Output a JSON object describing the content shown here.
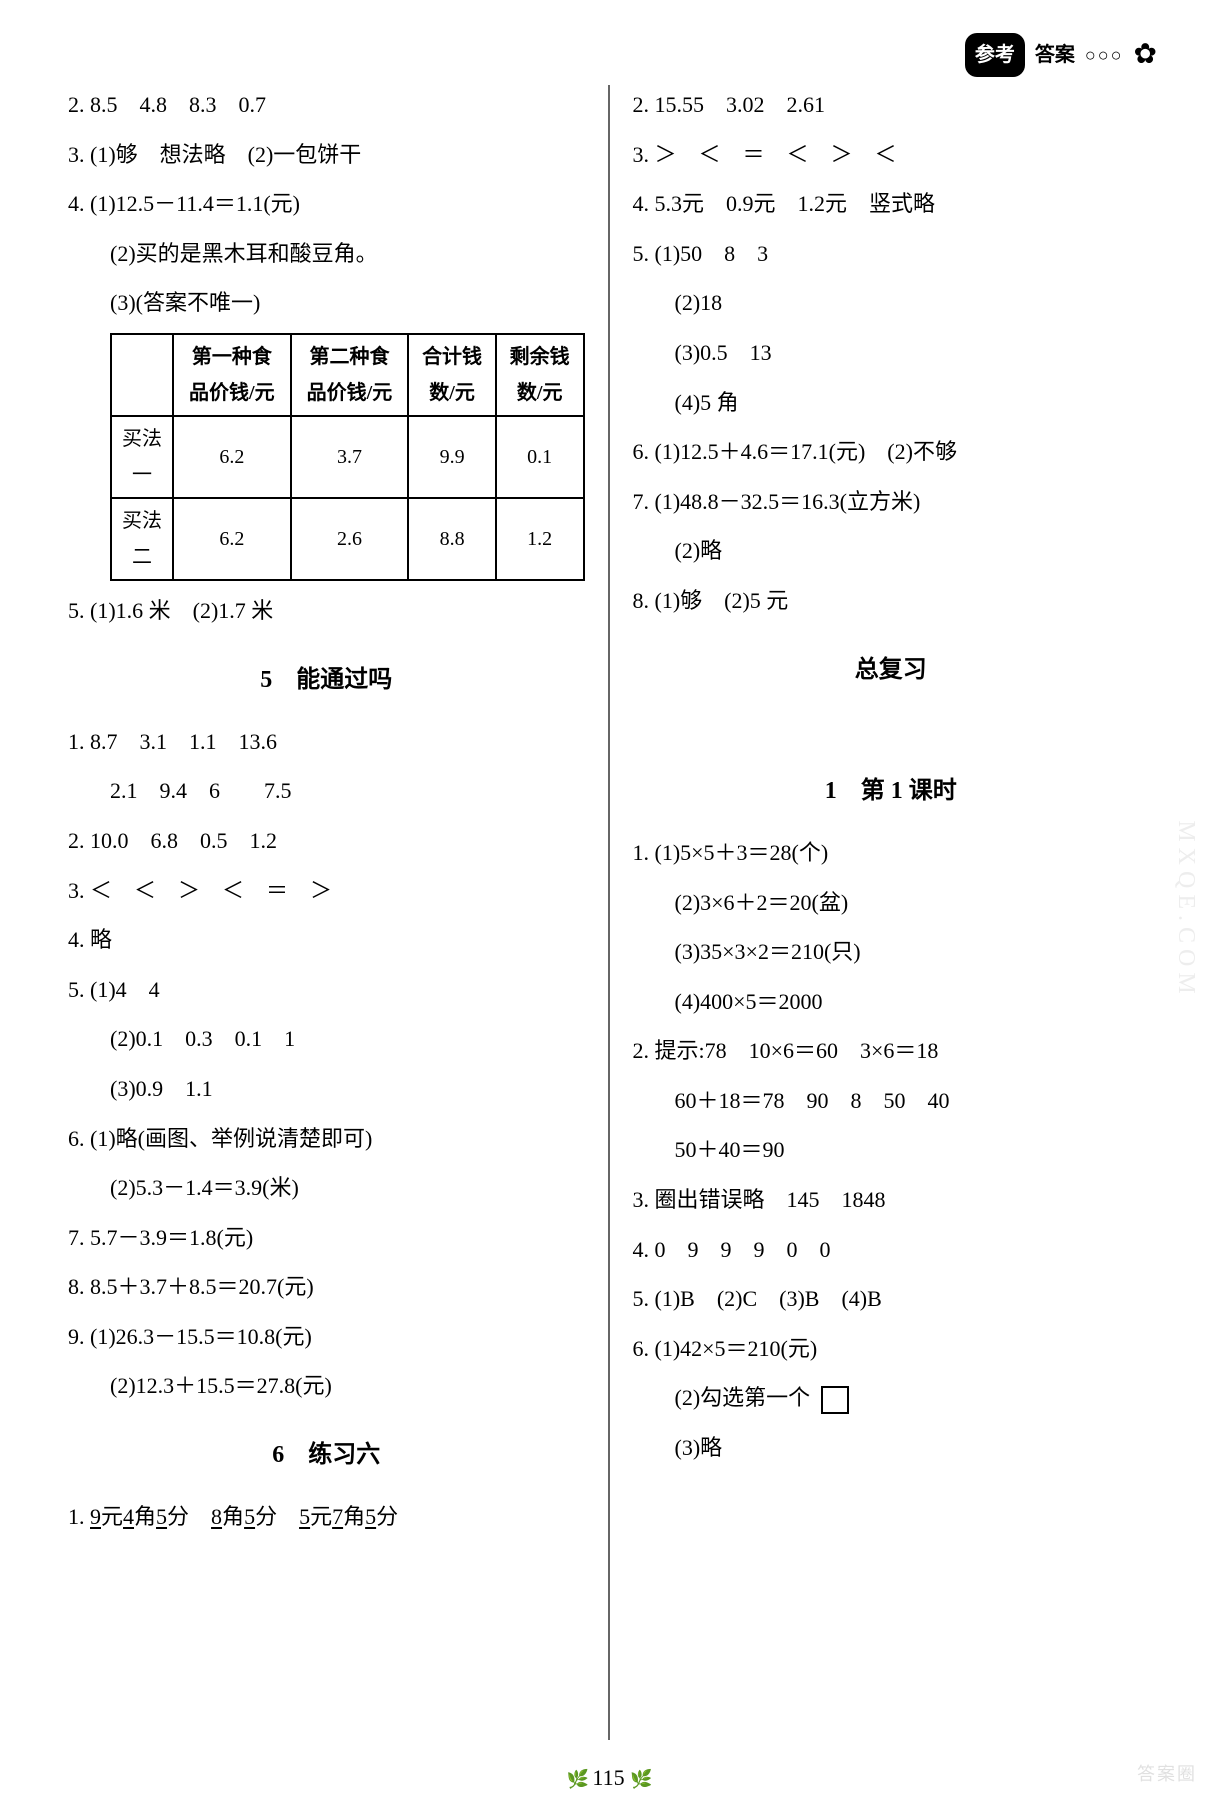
{
  "header": {
    "badge": "参考",
    "sub": "答案",
    "deco": "○○○",
    "flower": "✿"
  },
  "left": {
    "l2": "2. 8.5　4.8　8.3　0.7",
    "l3": "3. (1)够　想法略　(2)一包饼干",
    "l4": "4. (1)12.5－11.4＝1.1(元)",
    "l4b": "(2)买的是黑木耳和酸豆角。",
    "l4c": "(3)(答案不唯一)",
    "table": {
      "headers": [
        "",
        "第一种食品价钱/元",
        "第二种食品价钱/元",
        "合计钱数/元",
        "剩余钱数/元"
      ],
      "rows": [
        [
          "买法一",
          "6.2",
          "3.7",
          "9.9",
          "0.1"
        ],
        [
          "买法二",
          "6.2",
          "2.6",
          "8.8",
          "1.2"
        ]
      ]
    },
    "l5": "5. (1)1.6 米　(2)1.7 米",
    "title5": "5　能通过吗",
    "s5_1a": "1. 8.7　3.1　1.1　13.6",
    "s5_1b": "2.1　9.4　6　　7.5",
    "s5_2": "2. 10.0　6.8　0.5　1.2",
    "s5_3": "3. ＜　＜　＞　＜　＝　＞",
    "s5_4": "4. 略",
    "s5_5a": "5. (1)4　4",
    "s5_5b": "(2)0.1　0.3　0.1　1",
    "s5_5c": "(3)0.9　1.1",
    "s5_6a": "6. (1)略(画图、举例说清楚即可)",
    "s5_6b": "(2)5.3－1.4＝3.9(米)",
    "s5_7": "7. 5.7－3.9＝1.8(元)",
    "s5_8": "8. 8.5＋3.7＋8.5＝20.7(元)",
    "s5_9a": "9. (1)26.3－15.5＝10.8(元)",
    "s5_9b": "(2)12.3＋15.5＝27.8(元)",
    "title6": "6　练习六",
    "s6_1_pre": "1. ",
    "s6_1_parts": [
      "9",
      "元",
      "4",
      "角",
      "5",
      "分　",
      "8",
      "角",
      "5",
      "分　",
      "5",
      "元",
      "7",
      "角",
      "5",
      "分"
    ]
  },
  "right": {
    "r2": "2. 15.55　3.02　2.61",
    "r3": "3. ＞　＜　＝　＜　＞　＜",
    "r4": "4. 5.3元　0.9元　1.2元　竖式略",
    "r5a": "5. (1)50　8　3",
    "r5b": "(2)18",
    "r5c": "(3)0.5　13",
    "r5d": "(4)5 角",
    "r6": "6. (1)12.5＋4.6＝17.1(元)　(2)不够",
    "r7a": "7. (1)48.8－32.5＝16.3(立方米)",
    "r7b": "(2)略",
    "r8": "8. (1)够　(2)5 元",
    "titleReview": "总复习",
    "titleLesson1": "1　第 1 课时",
    "l1_1a": "1. (1)5×5＋3＝28(个)",
    "l1_1b": "(2)3×6＋2＝20(盆)",
    "l1_1c": "(3)35×3×2＝210(只)",
    "l1_1d": "(4)400×5＝2000",
    "l1_2a": "2. 提示:78　10×6＝60　3×6＝18",
    "l1_2b": "60＋18＝78　90　8　50　40",
    "l1_2c": "50＋40＝90",
    "l1_3": "3. 圈出错误略　145　1848",
    "l1_4": "4. 0　9　9　9　0　0",
    "l1_5": "5. (1)B　(2)C　(3)B　(4)B",
    "l1_6a": "6. (1)42×5＝210(元)",
    "l1_6b_pre": "(2)勾选第一个",
    "l1_6c": "(3)略"
  },
  "pageNum": "115",
  "watermark_corner": "答案圈",
  "watermark_side": "MXQE.COM"
}
